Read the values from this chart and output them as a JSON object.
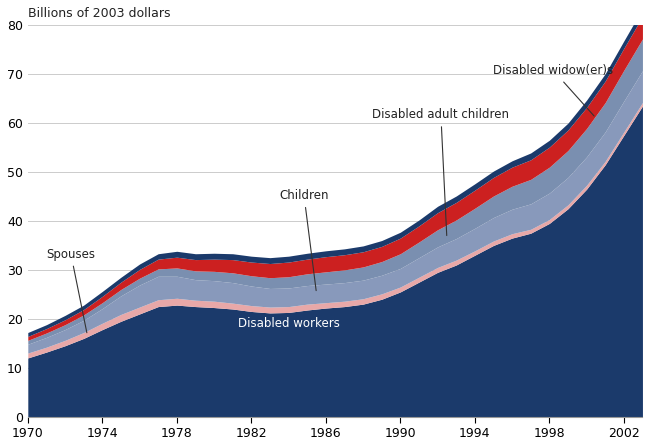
{
  "title": "Billions of 2003 dollars",
  "years": [
    1970,
    1971,
    1972,
    1973,
    1974,
    1975,
    1976,
    1977,
    1978,
    1979,
    1980,
    1981,
    1982,
    1983,
    1984,
    1985,
    1986,
    1987,
    1988,
    1989,
    1990,
    1991,
    1992,
    1993,
    1994,
    1995,
    1996,
    1997,
    1998,
    1999,
    2000,
    2001,
    2002,
    2003
  ],
  "disabled_workers": [
    12.0,
    13.2,
    14.5,
    16.0,
    17.8,
    19.5,
    21.0,
    22.5,
    22.8,
    22.5,
    22.3,
    22.0,
    21.5,
    21.2,
    21.3,
    21.8,
    22.2,
    22.5,
    23.0,
    24.0,
    25.5,
    27.5,
    29.5,
    31.0,
    33.0,
    35.0,
    36.5,
    37.5,
    39.5,
    42.5,
    46.5,
    51.5,
    57.5,
    63.5
  ],
  "spouses": [
    1.0,
    1.0,
    1.1,
    1.2,
    1.3,
    1.4,
    1.4,
    1.4,
    1.4,
    1.3,
    1.3,
    1.2,
    1.2,
    1.2,
    1.2,
    1.2,
    1.1,
    1.1,
    1.1,
    1.1,
    1.0,
    1.0,
    1.0,
    1.0,
    0.9,
    0.9,
    0.9,
    0.8,
    0.8,
    0.8,
    0.8,
    0.7,
    0.7,
    0.7
  ],
  "children": [
    1.8,
    2.0,
    2.2,
    2.5,
    3.0,
    3.8,
    4.5,
    4.8,
    4.5,
    4.2,
    4.2,
    4.2,
    4.0,
    3.8,
    3.8,
    3.8,
    3.8,
    3.8,
    3.8,
    3.8,
    3.8,
    4.0,
    4.2,
    4.4,
    4.6,
    4.8,
    5.0,
    5.2,
    5.4,
    5.6,
    5.8,
    6.0,
    6.3,
    6.5
  ],
  "disabled_adult_children": [
    0.8,
    0.9,
    1.0,
    1.1,
    1.2,
    1.3,
    1.4,
    1.5,
    1.7,
    1.8,
    1.9,
    2.0,
    2.1,
    2.2,
    2.3,
    2.4,
    2.5,
    2.6,
    2.7,
    2.8,
    3.0,
    3.2,
    3.5,
    3.8,
    4.1,
    4.4,
    4.7,
    5.0,
    5.3,
    5.5,
    5.8,
    6.0,
    6.3,
    6.5
  ],
  "disabled_widowers": [
    0.8,
    0.9,
    1.0,
    1.1,
    1.3,
    1.5,
    1.8,
    2.0,
    2.2,
    2.3,
    2.5,
    2.7,
    2.8,
    2.9,
    3.0,
    3.0,
    3.1,
    3.1,
    3.1,
    3.1,
    3.2,
    3.3,
    3.5,
    3.6,
    3.7,
    3.8,
    3.9,
    4.0,
    4.1,
    4.2,
    4.3,
    4.4,
    4.5,
    4.6
  ],
  "top_navy_thickness": [
    0.8,
    0.8,
    0.9,
    0.9,
    1.0,
    1.0,
    1.1,
    1.1,
    1.2,
    1.2,
    1.2,
    1.2,
    1.2,
    1.2,
    1.2,
    1.2,
    1.2,
    1.2,
    1.2,
    1.2,
    1.2,
    1.2,
    1.3,
    1.3,
    1.3,
    1.3,
    1.3,
    1.4,
    1.4,
    1.4,
    1.5,
    1.5,
    1.5,
    1.6
  ],
  "color_disabled_workers": "#1b3a6b",
  "color_spouses": "#e8a8a8",
  "color_children": "#8899bb",
  "color_disabled_adult_children": "#7a8fb0",
  "color_disabled_widowers": "#cc2020",
  "color_top_navy": "#1b3a6b",
  "ylim": [
    0,
    80
  ],
  "xlim": [
    1970,
    2003
  ],
  "yticks": [
    0,
    10,
    20,
    30,
    40,
    50,
    60,
    70,
    80
  ],
  "xticks": [
    1970,
    1974,
    1978,
    1982,
    1986,
    1990,
    1994,
    1998,
    2002
  ],
  "grid_color": "#cccccc",
  "label_fontsize": 9,
  "title_fontsize": 9,
  "annot_fontsize": 8.5
}
